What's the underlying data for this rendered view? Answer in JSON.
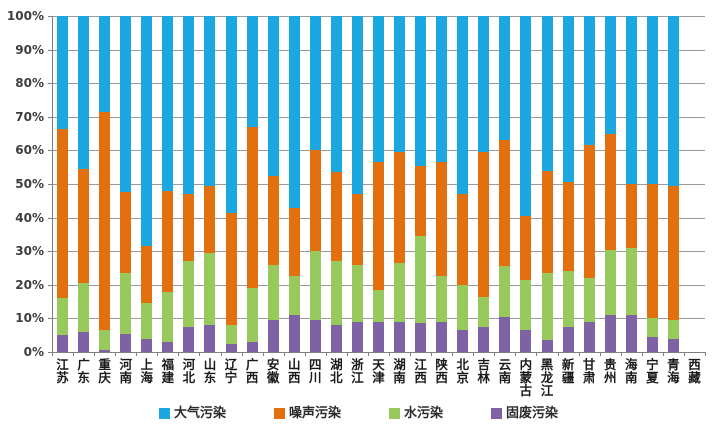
{
  "chart_data": {
    "type": "bar",
    "variant": "stacked-100-percent-column",
    "title": "",
    "xlabel": "",
    "ylabel": "",
    "ylim": [
      0,
      100
    ],
    "y_tick_labels": [
      "0%",
      "10%",
      "20%",
      "30%",
      "40%",
      "50%",
      "60%",
      "70%",
      "80%",
      "90%",
      "100%"
    ],
    "grid": true,
    "legend_position": "bottom",
    "legend_order": [
      "大气污染",
      "噪声污染",
      "水污染",
      "固废污染"
    ],
    "categories": [
      "江苏",
      "广东",
      "重庆",
      "河南",
      "上海",
      "福建",
      "河北",
      "山东",
      "辽宁",
      "广西",
      "安徽",
      "山西",
      "四川",
      "湖北",
      "浙江",
      "天津",
      "湖南",
      "江西",
      "陕西",
      "北京",
      "吉林",
      "云南",
      "内蒙古",
      "黑龙江",
      "新疆",
      "甘肃",
      "贵州",
      "海南",
      "宁夏",
      "青海",
      "西藏"
    ],
    "stack_order_bottom_to_top": [
      "固废污染",
      "水污染",
      "噪声污染",
      "大气污染"
    ],
    "series": [
      {
        "name": "固废污染",
        "color": "#7d62a5",
        "values": [
          5,
          6,
          0.5,
          5.5,
          4,
          3,
          7.5,
          8,
          2.5,
          3,
          9.5,
          11,
          9.5,
          8,
          9,
          9,
          9,
          8.5,
          9,
          6.5,
          7.5,
          10.5,
          6.5,
          3.5,
          7.5,
          9,
          11,
          11,
          4.5,
          4,
          0
        ]
      },
      {
        "name": "水污染",
        "color": "#97c95c",
        "values": [
          11,
          14.5,
          6,
          18,
          10.5,
          15,
          19.5,
          21.5,
          5.5,
          16,
          16.5,
          11.5,
          20.5,
          19,
          17,
          9.5,
          17.5,
          26,
          13.5,
          13.5,
          9,
          15,
          15,
          20,
          16.5,
          13,
          19.5,
          20,
          5.5,
          5.5,
          0
        ]
      },
      {
        "name": "噪声污染",
        "color": "#e3700e",
        "values": [
          50.5,
          34,
          65,
          24,
          17,
          30,
          20,
          20,
          33.5,
          48,
          26.5,
          20.5,
          30,
          26.5,
          21,
          38,
          33,
          21,
          34,
          27,
          43,
          37.5,
          19,
          30.5,
          26.5,
          39.5,
          34.5,
          19,
          40,
          40,
          0
        ]
      },
      {
        "name": "大气污染",
        "color": "#1ba7e0",
        "values": [
          33.5,
          45.5,
          28.5,
          52.5,
          68.5,
          52,
          53,
          50.5,
          58.5,
          33,
          47.5,
          57,
          40,
          46.5,
          53,
          43.5,
          40.5,
          44.5,
          43.5,
          53,
          40.5,
          37,
          59.5,
          46,
          49.5,
          38.5,
          35,
          50,
          50,
          50.5,
          0
        ]
      }
    ],
    "notes": "西藏 has no bar (no data). Values are percent of stacked total."
  }
}
